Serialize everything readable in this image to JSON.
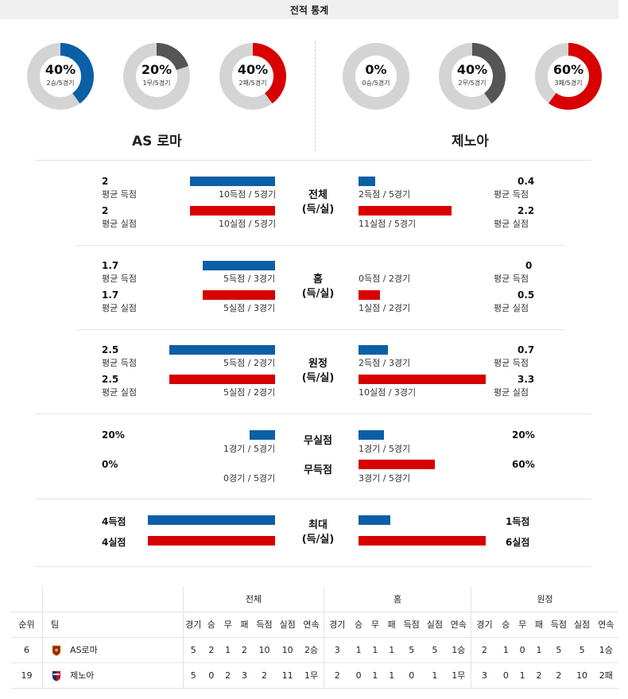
{
  "header": {
    "title": "전적 통계"
  },
  "donuts": {
    "home": [
      {
        "pct": "40%",
        "sub": "2승/5경기",
        "value": 0.4,
        "color": "#0a5fa6"
      },
      {
        "pct": "20%",
        "sub": "1무/5경기",
        "value": 0.2,
        "color": "#555555"
      },
      {
        "pct": "40%",
        "sub": "2패/5경기",
        "value": 0.4,
        "color": "#d80000"
      }
    ],
    "away": [
      {
        "pct": "0%",
        "sub": "0승/5경기",
        "value": 0.0,
        "color": "#0a5fa6"
      },
      {
        "pct": "40%",
        "sub": "2무/5경기",
        "value": 0.4,
        "color": "#555555"
      },
      {
        "pct": "60%",
        "sub": "3패/5경기",
        "value": 0.6,
        "color": "#d80000"
      }
    ]
  },
  "teams": {
    "home": "AS 로마",
    "away": "제노아"
  },
  "sections": {
    "overall": {
      "title1": "전체",
      "title2": "(득/실)",
      "home_scored_val": "2",
      "home_scored_label": "평균 득점",
      "home_scored_caption": "10득점 / 5경기",
      "home_conceded_val": "2",
      "home_conceded_label": "평균 실점",
      "home_conceded_caption": "10실점 / 5경기",
      "away_scored_val": "0.4",
      "away_scored_label": "평균 득점",
      "away_scored_caption": "2득점 / 5경기",
      "away_conceded_val": "2.2",
      "away_conceded_label": "평균 실점",
      "away_conceded_caption": "11실점 / 5경기"
    },
    "home": {
      "title1": "홈",
      "title2": "(득/실)",
      "home_scored_val": "1.7",
      "home_scored_label": "평균 득점",
      "home_scored_caption": "5득점 / 3경기",
      "home_conceded_val": "1.7",
      "home_conceded_label": "평균 실점",
      "home_conceded_caption": "5실점 / 3경기",
      "away_scored_val": "0",
      "away_scored_label": "평균 득점",
      "away_scored_caption": "0득점 / 2경기",
      "away_conceded_val": "0.5",
      "away_conceded_label": "평균 실점",
      "away_conceded_caption": "1실점 / 2경기"
    },
    "away": {
      "title1": "원정",
      "title2": "(득/실)",
      "home_scored_val": "2.5",
      "home_scored_label": "평균 득점",
      "home_scored_caption": "5득점 / 2경기",
      "home_conceded_val": "2.5",
      "home_conceded_label": "평균 실점",
      "home_conceded_caption": "5실점 / 2경기",
      "away_scored_val": "0.7",
      "away_scored_label": "평균 득점",
      "away_scored_caption": "2득점 / 3경기",
      "away_conceded_val": "3.3",
      "away_conceded_label": "평균 실점",
      "away_conceded_caption": "10실점 / 3경기"
    },
    "clean": {
      "title_clean": "무실점",
      "title_nogoal": "무득점",
      "home_clean_val": "20%",
      "home_clean_caption": "1경기 / 5경기",
      "home_nogoal_val": "0%",
      "home_nogoal_caption": "0경기 / 5경기",
      "away_clean_val": "20%",
      "away_clean_caption": "1경기 / 5경기",
      "away_nogoal_val": "60%",
      "away_nogoal_caption": "3경기 / 5경기"
    },
    "max": {
      "title1": "최대",
      "title2": "(득/실)",
      "home_scored": "4득점",
      "home_conceded": "4실점",
      "away_scored": "1득점",
      "away_conceded": "6실점"
    }
  },
  "standings": {
    "groups": [
      "전체",
      "홈",
      "원정"
    ],
    "col_rank": "순위",
    "col_team": "팀",
    "columns": [
      "경기",
      "승",
      "무",
      "패",
      "득점",
      "실점",
      "연속"
    ],
    "rows": [
      {
        "rank": "6",
        "team": "AS로마",
        "overall": [
          "5",
          "2",
          "1",
          "2",
          "10",
          "10",
          "2승"
        ],
        "home": [
          "3",
          "1",
          "1",
          "1",
          "5",
          "5",
          "1승"
        ],
        "away": [
          "2",
          "1",
          "0",
          "1",
          "5",
          "5",
          "1승"
        ]
      },
      {
        "rank": "19",
        "team": "제노아",
        "overall": [
          "5",
          "0",
          "2",
          "3",
          "2",
          "11",
          "1무"
        ],
        "home": [
          "2",
          "0",
          "1",
          "1",
          "0",
          "1",
          "1무"
        ],
        "away": [
          "3",
          "0",
          "1",
          "2",
          "2",
          "10",
          "2패"
        ]
      }
    ]
  }
}
